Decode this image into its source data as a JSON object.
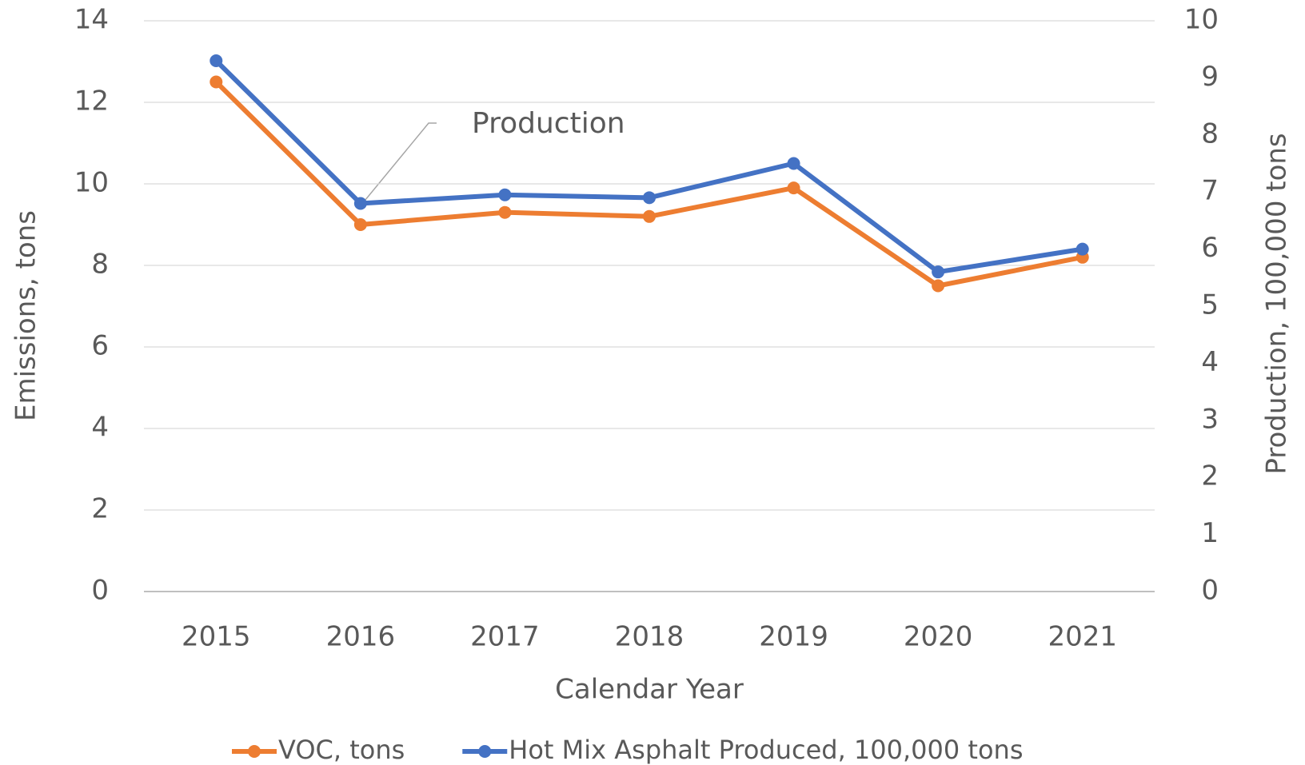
{
  "chart_data": {
    "type": "line",
    "x_label": "Calendar Year",
    "y_label": "Emissions, tons",
    "y2_label": "Production, 100,000 tons",
    "annotation": "Production",
    "categories": [
      "2015",
      "2016",
      "2017",
      "2018",
      "2019",
      "2020",
      "2021"
    ],
    "series": [
      {
        "name": "VOC, tons",
        "color": "#ed7d31",
        "values": [
          12.5,
          9.0,
          9.3,
          9.2,
          9.9,
          7.5,
          8.2
        ]
      },
      {
        "name": "Hot Mix Asphalt Produced, 100,000 tons",
        "color": "#4472c4",
        "axis": "y2",
        "values": [
          9.3,
          6.8,
          6.95,
          6.9,
          7.5,
          5.6,
          6.0
        ]
      }
    ],
    "ylim": [
      0,
      14
    ],
    "yticks": [
      0,
      2,
      4,
      6,
      8,
      10,
      12,
      14
    ],
    "y2lim": [
      0,
      10
    ],
    "y2ticks": [
      0,
      1,
      2,
      3,
      4,
      5,
      6,
      7,
      8,
      9,
      10
    ],
    "grid": true,
    "legend": "bottom"
  }
}
